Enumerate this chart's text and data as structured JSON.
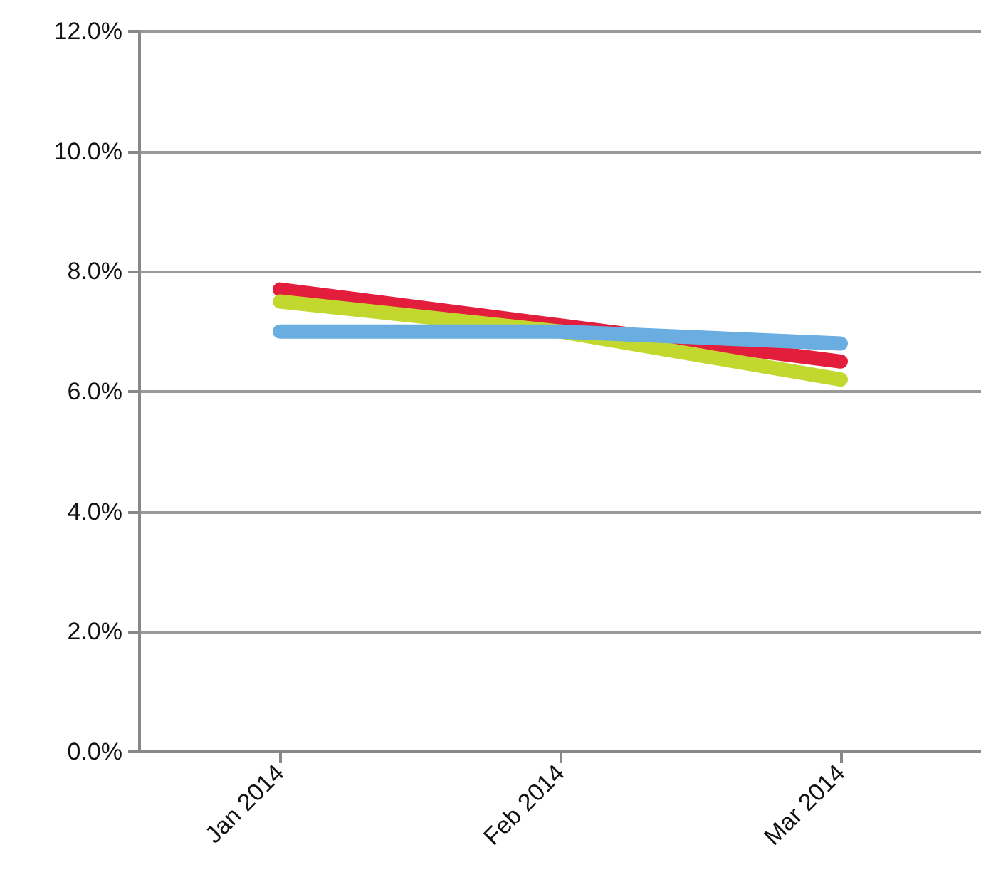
{
  "chart_data": {
    "type": "line",
    "categories": [
      "Jan 2014",
      "Feb 2014",
      "Mar 2014"
    ],
    "series": [
      {
        "color": "#e31d3c",
        "values": [
          7.7,
          7.1,
          6.5
        ]
      },
      {
        "color": "#c2d82e",
        "values": [
          7.5,
          7.0,
          6.2
        ]
      },
      {
        "color": "#6aade0",
        "values": [
          7.0,
          7.0,
          6.8
        ]
      }
    ],
    "ylim": [
      0,
      12
    ],
    "yticks": [
      {
        "value": 0,
        "label": "0.0%"
      },
      {
        "value": 2,
        "label": "2.0%"
      },
      {
        "value": 4,
        "label": "4.0%"
      },
      {
        "value": 6,
        "label": "6.0%"
      },
      {
        "value": 8,
        "label": "8.0%"
      },
      {
        "value": 10,
        "label": "10.0%"
      },
      {
        "value": 12,
        "label": "12.0%"
      }
    ],
    "grid": "y",
    "marker": "none",
    "line_style": "solid"
  }
}
